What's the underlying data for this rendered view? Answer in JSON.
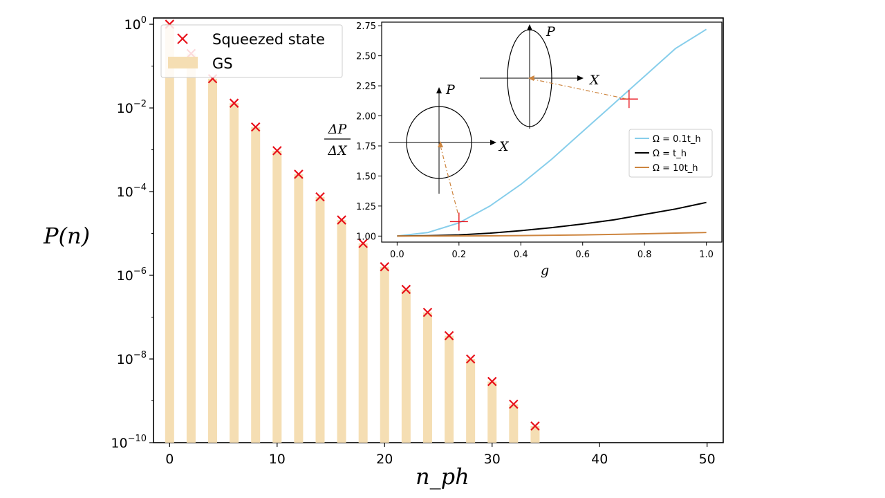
{
  "chart_data": [
    {
      "type": "bar",
      "scale_y": "log",
      "xlabel": "n_ph",
      "ylabel": "P(n)",
      "xlim": [
        -1.5,
        51.5
      ],
      "ylim_exp": [
        -10,
        0.15
      ],
      "x_ticks": [
        0,
        10,
        20,
        30,
        40,
        50
      ],
      "y_tick_exponents": [
        0,
        -2,
        -4,
        -6,
        -8,
        -10
      ],
      "x": [
        0,
        2,
        4,
        6,
        8,
        10,
        12,
        14,
        16,
        18,
        20,
        22,
        24,
        26,
        28,
        30,
        32,
        34
      ],
      "series": [
        {
          "name": "Squeezed state",
          "kind": "marker",
          "color": "#e8121b",
          "values": [
            1.0,
            0.2,
            0.05,
            0.013,
            0.0035,
            0.00095,
            0.00026,
            7.5e-05,
            2.1e-05,
            5.8e-06,
            1.6e-06,
            4.6e-07,
            1.3e-07,
            3.6e-08,
            1e-08,
            2.9e-09,
            8.3e-10,
            2.5e-10
          ]
        },
        {
          "name": "GS",
          "kind": "bar",
          "color": "#f5deb3",
          "values": [
            1.0,
            0.2,
            0.05,
            0.013,
            0.0035,
            0.00095,
            0.00026,
            7.5e-05,
            2.1e-05,
            5.8e-06,
            1.6e-06,
            4.6e-07,
            1.3e-07,
            3.6e-08,
            1e-08,
            2.9e-09,
            8.3e-10,
            2.5e-10
          ]
        }
      ],
      "legend": "upper-left"
    },
    {
      "type": "line",
      "xlabel": "g",
      "ylabel_num": "ΔP",
      "ylabel_den": "ΔX",
      "xlim": [
        -0.05,
        1.05
      ],
      "ylim": [
        0.95,
        2.78
      ],
      "x_ticks": [
        0.0,
        0.2,
        0.4,
        0.6,
        0.8,
        1.0
      ],
      "y_ticks": [
        1.0,
        1.25,
        1.5,
        1.75,
        2.0,
        2.25,
        2.5,
        2.75
      ],
      "x": [
        0.0,
        0.1,
        0.2,
        0.3,
        0.4,
        0.5,
        0.6,
        0.7,
        0.8,
        0.9,
        1.0
      ],
      "series": [
        {
          "name": "Ω = 0.1t_h",
          "color": "#87ceeb",
          "values": [
            1.0,
            1.03,
            1.11,
            1.25,
            1.43,
            1.64,
            1.87,
            2.1,
            2.33,
            2.56,
            2.72
          ]
        },
        {
          "name": "Ω = t_h",
          "color": "#000000",
          "values": [
            1.0,
            1.003,
            1.01,
            1.024,
            1.045,
            1.07,
            1.1,
            1.135,
            1.18,
            1.225,
            1.28
          ]
        },
        {
          "name": "Ω = 10t_h",
          "color": "#cd853f",
          "values": [
            1.0,
            1.0003,
            1.001,
            1.002,
            1.004,
            1.007,
            1.01,
            1.014,
            1.019,
            1.025,
            1.03
          ]
        }
      ],
      "markers": [
        {
          "g": 0.2,
          "value": 1.12
        },
        {
          "g": 0.75,
          "value": 2.14
        }
      ],
      "legend": "center-right",
      "annotations": {
        "axis_p": "P",
        "axis_x": "X"
      }
    }
  ]
}
